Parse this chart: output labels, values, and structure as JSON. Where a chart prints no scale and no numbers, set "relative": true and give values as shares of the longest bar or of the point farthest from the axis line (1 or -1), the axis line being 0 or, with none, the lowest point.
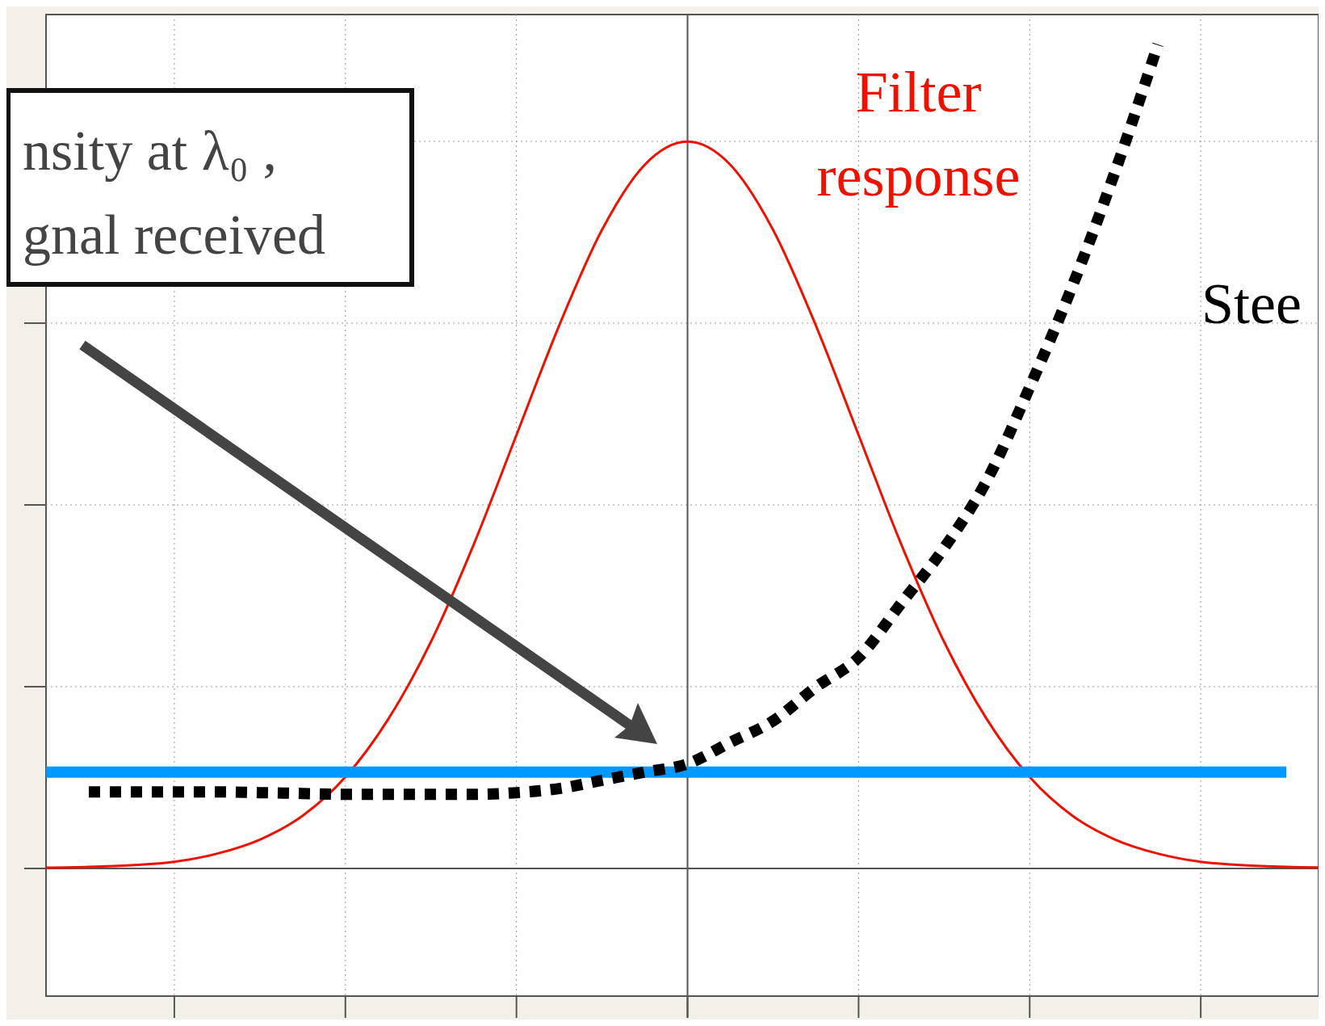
{
  "chart_data": {
    "type": "line",
    "relative": true,
    "grid": true,
    "categories": [
      null,
      null,
      null,
      null,
      null,
      null,
      null,
      null,
      null,
      null,
      null,
      null,
      null,
      null,
      null,
      null,
      null,
      null,
      null,
      null,
      null,
      null,
      null,
      null,
      null,
      null,
      null,
      null,
      null,
      null,
      null
    ],
    "series": [
      {
        "name": "Filter response",
        "color": "#ee1100",
        "line_style": "solid",
        "values": [
          0.001,
          0.002,
          0.004,
          0.008,
          0.018,
          0.035,
          0.064,
          0.111,
          0.181,
          0.275,
          0.393,
          0.526,
          0.659,
          0.775,
          0.854,
          0.882,
          0.854,
          0.775,
          0.659,
          0.526,
          0.393,
          0.275,
          0.181,
          0.111,
          0.064,
          0.035,
          0.018,
          0.008,
          0.004,
          0.002,
          0.001
        ]
      },
      {
        "color": "#0099ff",
        "line_style": "solid",
        "values": [
          0.117,
          0.117,
          0.117,
          0.117,
          0.117,
          0.117,
          0.117,
          0.117,
          0.117,
          0.117,
          0.117,
          0.117,
          0.117,
          0.117,
          0.117,
          0.117,
          0.117,
          0.117,
          0.117,
          0.117,
          0.117,
          0.117,
          0.117,
          0.117,
          0.117,
          0.117,
          0.117,
          0.117,
          0.117,
          0.117,
          null
        ]
      },
      {
        "name": "Stee",
        "color": "#000000",
        "line_style": "dotted",
        "values": [
          null,
          0.093,
          0.093,
          0.093,
          0.093,
          0.092,
          0.091,
          0.09,
          0.09,
          0.09,
          0.09,
          0.092,
          0.097,
          0.107,
          0.117,
          0.127,
          0.153,
          0.179,
          0.22,
          0.256,
          0.322,
          0.389,
          0.471,
          0.584,
          0.707,
          0.846,
          1,
          null,
          null,
          null,
          null
        ]
      }
    ],
    "annotations": [
      "nsity at λ₀ ,",
      "gnal received"
    ]
  }
}
